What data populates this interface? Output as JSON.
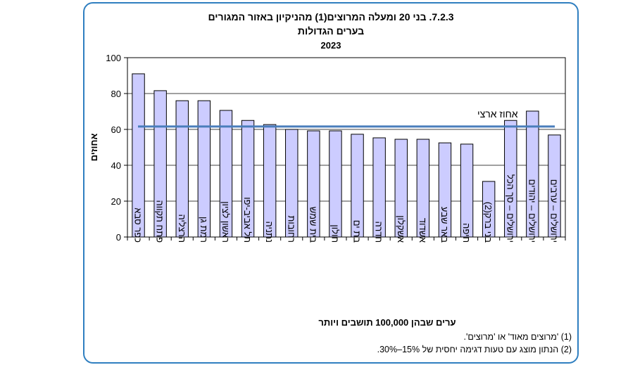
{
  "chart_data": {
    "type": "bar",
    "title": "7.2.3. בני 20 ומעלה המרוצים(1) מהניקיון באזור המגורים",
    "subtitle": "בערים הגדולות",
    "year": "2023",
    "xlabel": "ערים שבהן 100,000 תושבים ויותר",
    "ylabel": "אחוזים",
    "ylim": [
      0,
      100
    ],
    "yticks": [
      0,
      20,
      40,
      60,
      80,
      100
    ],
    "grid": true,
    "categories": [
      "כפר סבא",
      "פתח תקווה",
      "הרצליה",
      "רמת גן",
      "ראשון לציון",
      "תל אביב-יפו",
      "נתניה",
      "רחובות",
      "בית שמש",
      "חולון",
      "בת ים",
      "חדרה",
      "אשקלון",
      "אשדוד",
      "באר שבע",
      "חיפה",
      "בני ברק(2)",
      "ירושלים – סך הכל",
      "ירושלים – יהודים",
      "ירושלים – ערבים"
    ],
    "values": [
      91,
      81.6,
      76,
      76,
      70.6,
      65,
      62.7,
      60,
      59.2,
      59.2,
      57.3,
      55.3,
      54.5,
      54.5,
      52.5,
      51.8,
      31,
      65,
      70.2,
      56.9
    ],
    "reference_line": {
      "label": "אחוז ארצי",
      "value": 61.6
    },
    "bar_color": "#ccccff",
    "line_color": "#4a7ebb"
  },
  "footnotes": [
    "(1) 'מרוצים מאוד' או 'מרוצים'.",
    "(2) הנתון מוצג עם טעות דגימה יחסית של 15%–30%."
  ]
}
